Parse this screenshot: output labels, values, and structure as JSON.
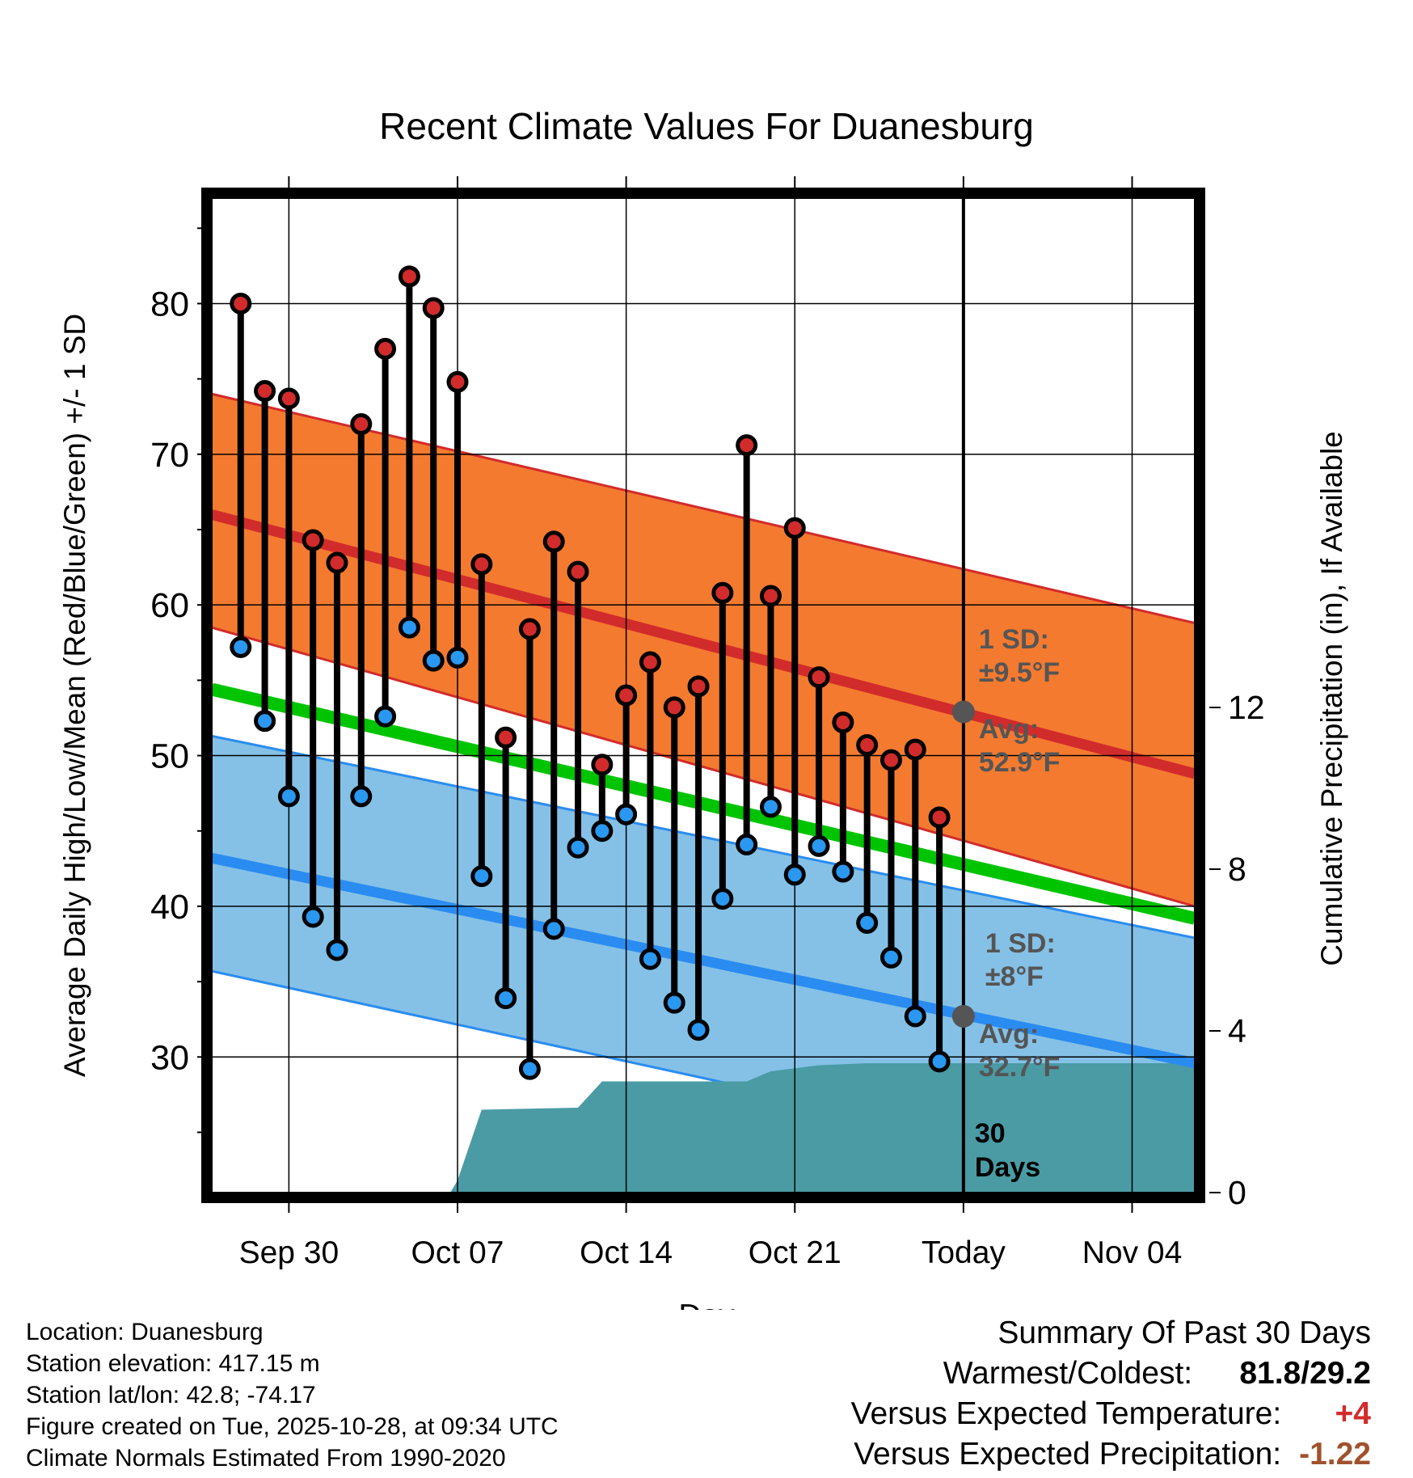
{
  "chart_data": {
    "type": "range-dot",
    "title": "Recent Climate Values For Duanesburg",
    "xlabel": "Day",
    "ylabel_left": "Average Daily High/Low/Mean (Red/Blue/Green) +/- 1 SD",
    "ylabel_right": "Cumulative Precipitation (in), If Available",
    "x_tick_labels": [
      "Sep 30",
      "Oct 07",
      "Oct 14",
      "Oct 21",
      "Today",
      "Nov 04"
    ],
    "x_tick_days": [
      0,
      7,
      14,
      21,
      28,
      35
    ],
    "y_left_ticks": [
      30,
      40,
      50,
      60,
      70,
      80
    ],
    "y_left_range": [
      21,
      87
    ],
    "y_right_ticks": [
      0,
      4,
      8,
      12
    ],
    "y_right_range": [
      0,
      24.6
    ],
    "x_range": [
      -3.2,
      37.6
    ],
    "days": [
      -2,
      -1,
      0,
      1,
      2,
      3,
      4,
      5,
      6,
      7,
      8,
      9,
      10,
      11,
      12,
      13,
      14,
      15,
      16,
      17,
      18,
      19,
      20,
      21,
      22,
      23,
      24,
      25,
      26,
      27
    ],
    "highs": [
      80.0,
      74.2,
      73.7,
      64.3,
      62.8,
      72.0,
      77.0,
      81.8,
      79.7,
      74.8,
      62.7,
      51.2,
      58.4,
      64.2,
      62.2,
      49.4,
      54.0,
      56.2,
      53.2,
      54.6,
      60.8,
      70.6,
      60.6,
      65.1,
      55.2,
      52.2,
      50.7,
      49.7,
      50.4,
      45.9
    ],
    "lows": [
      57.2,
      52.3,
      47.3,
      39.3,
      37.1,
      47.3,
      52.6,
      58.5,
      56.3,
      56.5,
      42.0,
      33.9,
      29.2,
      38.5,
      43.9,
      45.0,
      46.1,
      36.5,
      33.6,
      31.8,
      40.5,
      44.1,
      46.6,
      42.1,
      44.0,
      42.3,
      38.9,
      36.6,
      32.7,
      29.7
    ],
    "normal_high_line": {
      "start": 66.0,
      "end": 48.8
    },
    "normal_high_band": {
      "upper_start": 74.0,
      "upper_end": 58.8,
      "lower_start": 58.5,
      "lower_end": 40.0
    },
    "normal_mean_line": {
      "start": 54.4,
      "end": 39.2
    },
    "normal_low_line": {
      "start": 43.2,
      "end": 29.6
    },
    "normal_low_band": {
      "upper_start": 51.3,
      "upper_end": 37.9,
      "lower_start": 35.7,
      "lower_end": 21.5
    },
    "precip_cumulative": {
      "x": [
        -3.2,
        6.7,
        7.0,
        8.0,
        12.0,
        13.0,
        19.0,
        20.0,
        22.0,
        24.0,
        37.6
      ],
      "values": [
        0,
        0,
        0.3,
        2.05,
        2.1,
        2.75,
        2.75,
        3.0,
        3.15,
        3.2,
        3.2
      ]
    },
    "annotations": {
      "high_sd_label": "1 SD:",
      "high_sd_value": "±9.5°F",
      "high_avg_label": "Avg:",
      "high_avg_value": "52.9°F",
      "today_normal_high": 52.9,
      "low_sd_label": "1 SD:",
      "low_sd_value": "±8°F",
      "low_avg_label": "Avg:",
      "low_avg_value": "32.7°F",
      "today_normal_low": 32.7,
      "days_line1": "30",
      "days_line2": "Days"
    },
    "colors": {
      "high_band": "#f47a30",
      "high_band_edge": "#d22b2b",
      "high_line": "#d22b2b",
      "mean_line": "#00c400",
      "low_band": "#85c1e7",
      "low_band_edge": "#2a8cf0",
      "low_line": "#2a8cf0",
      "precip": "#4a9ba4",
      "high_dot": "#d22b2b",
      "low_dot": "#2a98f0",
      "annotation": "#555555",
      "today_dot": "#555555"
    }
  },
  "info": {
    "location": "Location: Duanesburg",
    "elevation": "Station elevation: 417.15 m",
    "latlon": "Station lat/lon: 42.8; -74.17",
    "created": "Figure created on Tue, 2025-10-28, at 09:34 UTC",
    "normals": "Climate Normals Estimated From 1990-2020"
  },
  "summary": {
    "title": "Summary Of Past 30 Days",
    "warm_label": "Warmest/Coldest:",
    "warm_value": "81.8/29.2",
    "temp_label": "Versus Expected Temperature:",
    "temp_value": "+4",
    "precip_label": "Versus Expected Precipitation:",
    "precip_value": "-1.22"
  }
}
